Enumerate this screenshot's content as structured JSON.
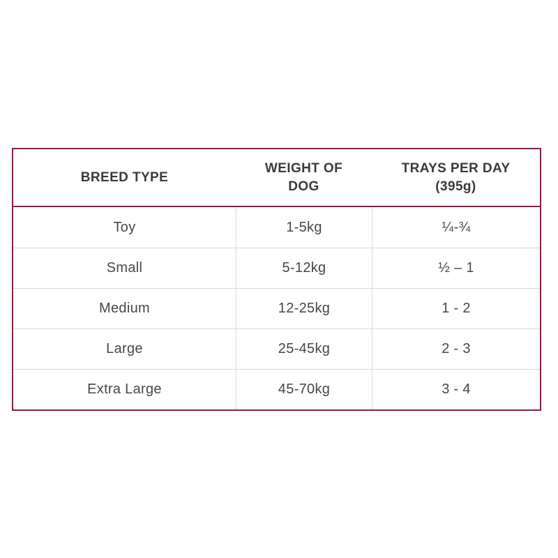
{
  "accent_border_color": "#7f2349",
  "divider_color": "#d8d8d8",
  "table": {
    "header": [
      "BREED TYPE",
      "WEIGHT OF\nDOG",
      "TRAYS PER DAY\n(395g)"
    ],
    "rows": [
      {
        "breed": "Toy",
        "weight": "1-5kg",
        "trays": "¼-¾"
      },
      {
        "breed": "Small",
        "weight": "5-12kg",
        "trays": "½ – 1"
      },
      {
        "breed": "Medium",
        "weight": "12-25kg",
        "trays": "1 - 2"
      },
      {
        "breed": "Large",
        "weight": "25-45kg",
        "trays": "2 - 3"
      },
      {
        "breed": "Extra Large",
        "weight": "45-70kg",
        "trays": "3 - 4"
      }
    ]
  },
  "chart_data": {
    "type": "table",
    "title": "",
    "columns": [
      "BREED TYPE",
      "WEIGHT OF DOG",
      "TRAYS PER DAY (395g)"
    ],
    "rows": [
      [
        "Toy",
        "1-5kg",
        "¼-¾"
      ],
      [
        "Small",
        "5-12kg",
        "½ – 1"
      ],
      [
        "Medium",
        "12-25kg",
        "1 - 2"
      ],
      [
        "Large",
        "25-45kg",
        "2 - 3"
      ],
      [
        "Extra Large",
        "45-70kg",
        "3 - 4"
      ]
    ]
  }
}
